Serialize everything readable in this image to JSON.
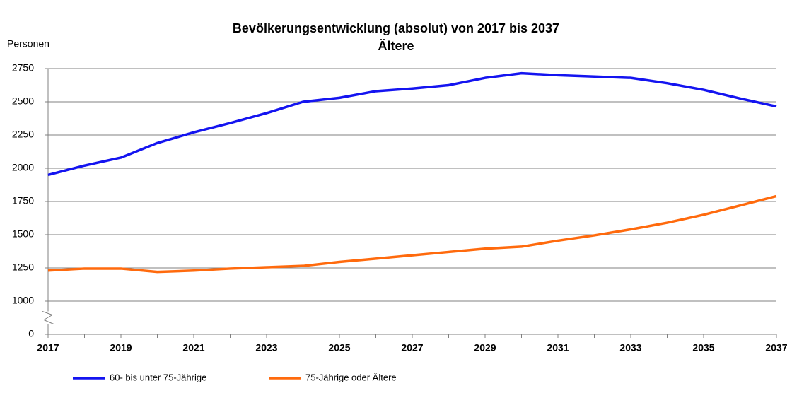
{
  "chart_data": {
    "type": "line",
    "title": "Bevölkerungsentwicklung (absolut) von 2017 bis 2037",
    "subtitle": "Ältere",
    "y_label": "Personen",
    "x": [
      2017,
      2018,
      2019,
      2020,
      2021,
      2022,
      2023,
      2024,
      2025,
      2026,
      2027,
      2028,
      2029,
      2030,
      2031,
      2032,
      2033,
      2034,
      2035,
      2036,
      2037
    ],
    "series": [
      {
        "name": "60- bis unter 75-Jährige",
        "color": "#1414f0",
        "values": [
          1950,
          2020,
          2080,
          2190,
          2270,
          2340,
          2415,
          2500,
          2530,
          2580,
          2600,
          2625,
          2680,
          2715,
          2700,
          2690,
          2680,
          2640,
          2590,
          2525,
          2465
        ]
      },
      {
        "name": "75-Jährige oder Ältere",
        "color": "#ff6a0d",
        "values": [
          1230,
          1245,
          1245,
          1220,
          1230,
          1245,
          1255,
          1265,
          1295,
          1320,
          1345,
          1370,
          1395,
          1410,
          1455,
          1495,
          1540,
          1590,
          1650,
          1720,
          1790
        ]
      }
    ],
    "xlim": [
      2017,
      2037
    ],
    "xticks": [
      2017,
      2019,
      2021,
      2023,
      2025,
      2027,
      2029,
      2031,
      2033,
      2035,
      2037
    ],
    "ylim": [
      0,
      2750
    ],
    "yticks": [
      0,
      1000,
      1250,
      1500,
      1750,
      2000,
      2250,
      2500,
      2750
    ],
    "broken_axis": true,
    "grid": true,
    "legend": "bottom"
  }
}
